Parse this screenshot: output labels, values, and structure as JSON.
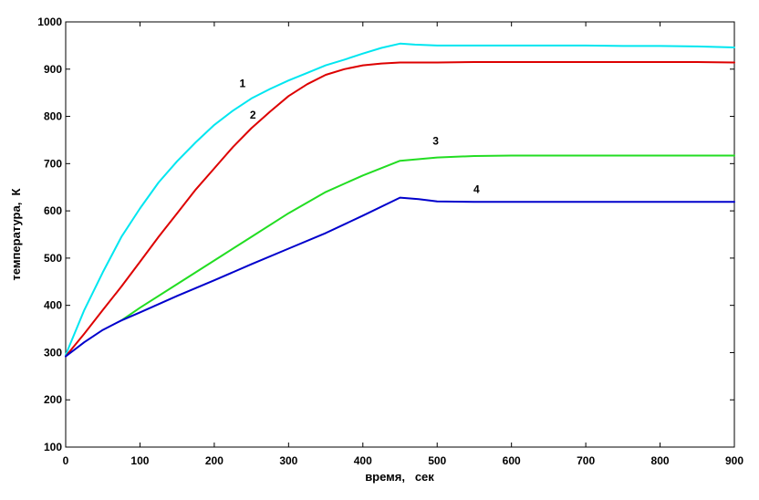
{
  "chart_data": {
    "type": "line",
    "title": "",
    "xlabel": "время,   сек",
    "ylabel": "температура,  К",
    "xlim": [
      0,
      900
    ],
    "ylim": [
      100,
      1000
    ],
    "xticks": [
      0,
      100,
      200,
      300,
      400,
      500,
      600,
      700,
      800,
      900
    ],
    "yticks": [
      100,
      200,
      300,
      400,
      500,
      600,
      700,
      800,
      900,
      1000
    ],
    "grid": false,
    "series": [
      {
        "name": "1",
        "color": "#00e6f0",
        "x": [
          0,
          25,
          50,
          75,
          100,
          125,
          150,
          175,
          200,
          225,
          250,
          275,
          300,
          325,
          350,
          375,
          400,
          425,
          450,
          470,
          500,
          550,
          600,
          650,
          700,
          750,
          800,
          850,
          900
        ],
        "y": [
          295,
          390,
          470,
          545,
          605,
          660,
          705,
          745,
          782,
          812,
          838,
          858,
          876,
          892,
          908,
          920,
          933,
          945,
          954,
          952,
          950,
          950,
          950,
          950,
          950,
          949,
          949,
          948,
          946
        ],
        "label_x": 238,
        "label_y": 862
      },
      {
        "name": "2",
        "color": "#dd0000",
        "x": [
          0,
          25,
          50,
          75,
          100,
          125,
          150,
          175,
          200,
          225,
          250,
          275,
          300,
          325,
          350,
          375,
          400,
          425,
          450,
          500,
          550,
          600,
          650,
          700,
          750,
          800,
          850,
          900
        ],
        "y": [
          292,
          340,
          390,
          440,
          492,
          545,
          595,
          645,
          690,
          735,
          775,
          810,
          843,
          868,
          888,
          900,
          908,
          912,
          914,
          914,
          915,
          915,
          915,
          915,
          915,
          915,
          915,
          914
        ],
        "label_x": 252,
        "label_y": 795
      },
      {
        "name": "3",
        "color": "#22dd22",
        "x": [
          75,
          100,
          150,
          200,
          250,
          300,
          350,
          400,
          450,
          500,
          550,
          600,
          650,
          700,
          750,
          800,
          850,
          900
        ],
        "y": [
          368,
          395,
          445,
          495,
          545,
          595,
          640,
          675,
          706,
          713,
          716,
          717,
          717,
          717,
          717,
          717,
          717,
          717
        ],
        "label_x": 498,
        "label_y": 740
      },
      {
        "name": "4",
        "color": "#0000cc",
        "x": [
          0,
          25,
          50,
          75,
          100,
          150,
          200,
          250,
          300,
          350,
          400,
          450,
          475,
          500,
          550,
          600,
          650,
          700,
          750,
          800,
          850,
          900
        ],
        "y": [
          292,
          322,
          348,
          368,
          385,
          420,
          453,
          487,
          520,
          553,
          590,
          628,
          625,
          620,
          619,
          619,
          619,
          619,
          619,
          619,
          619,
          619
        ],
        "label_x": 553,
        "label_y": 638
      }
    ]
  }
}
